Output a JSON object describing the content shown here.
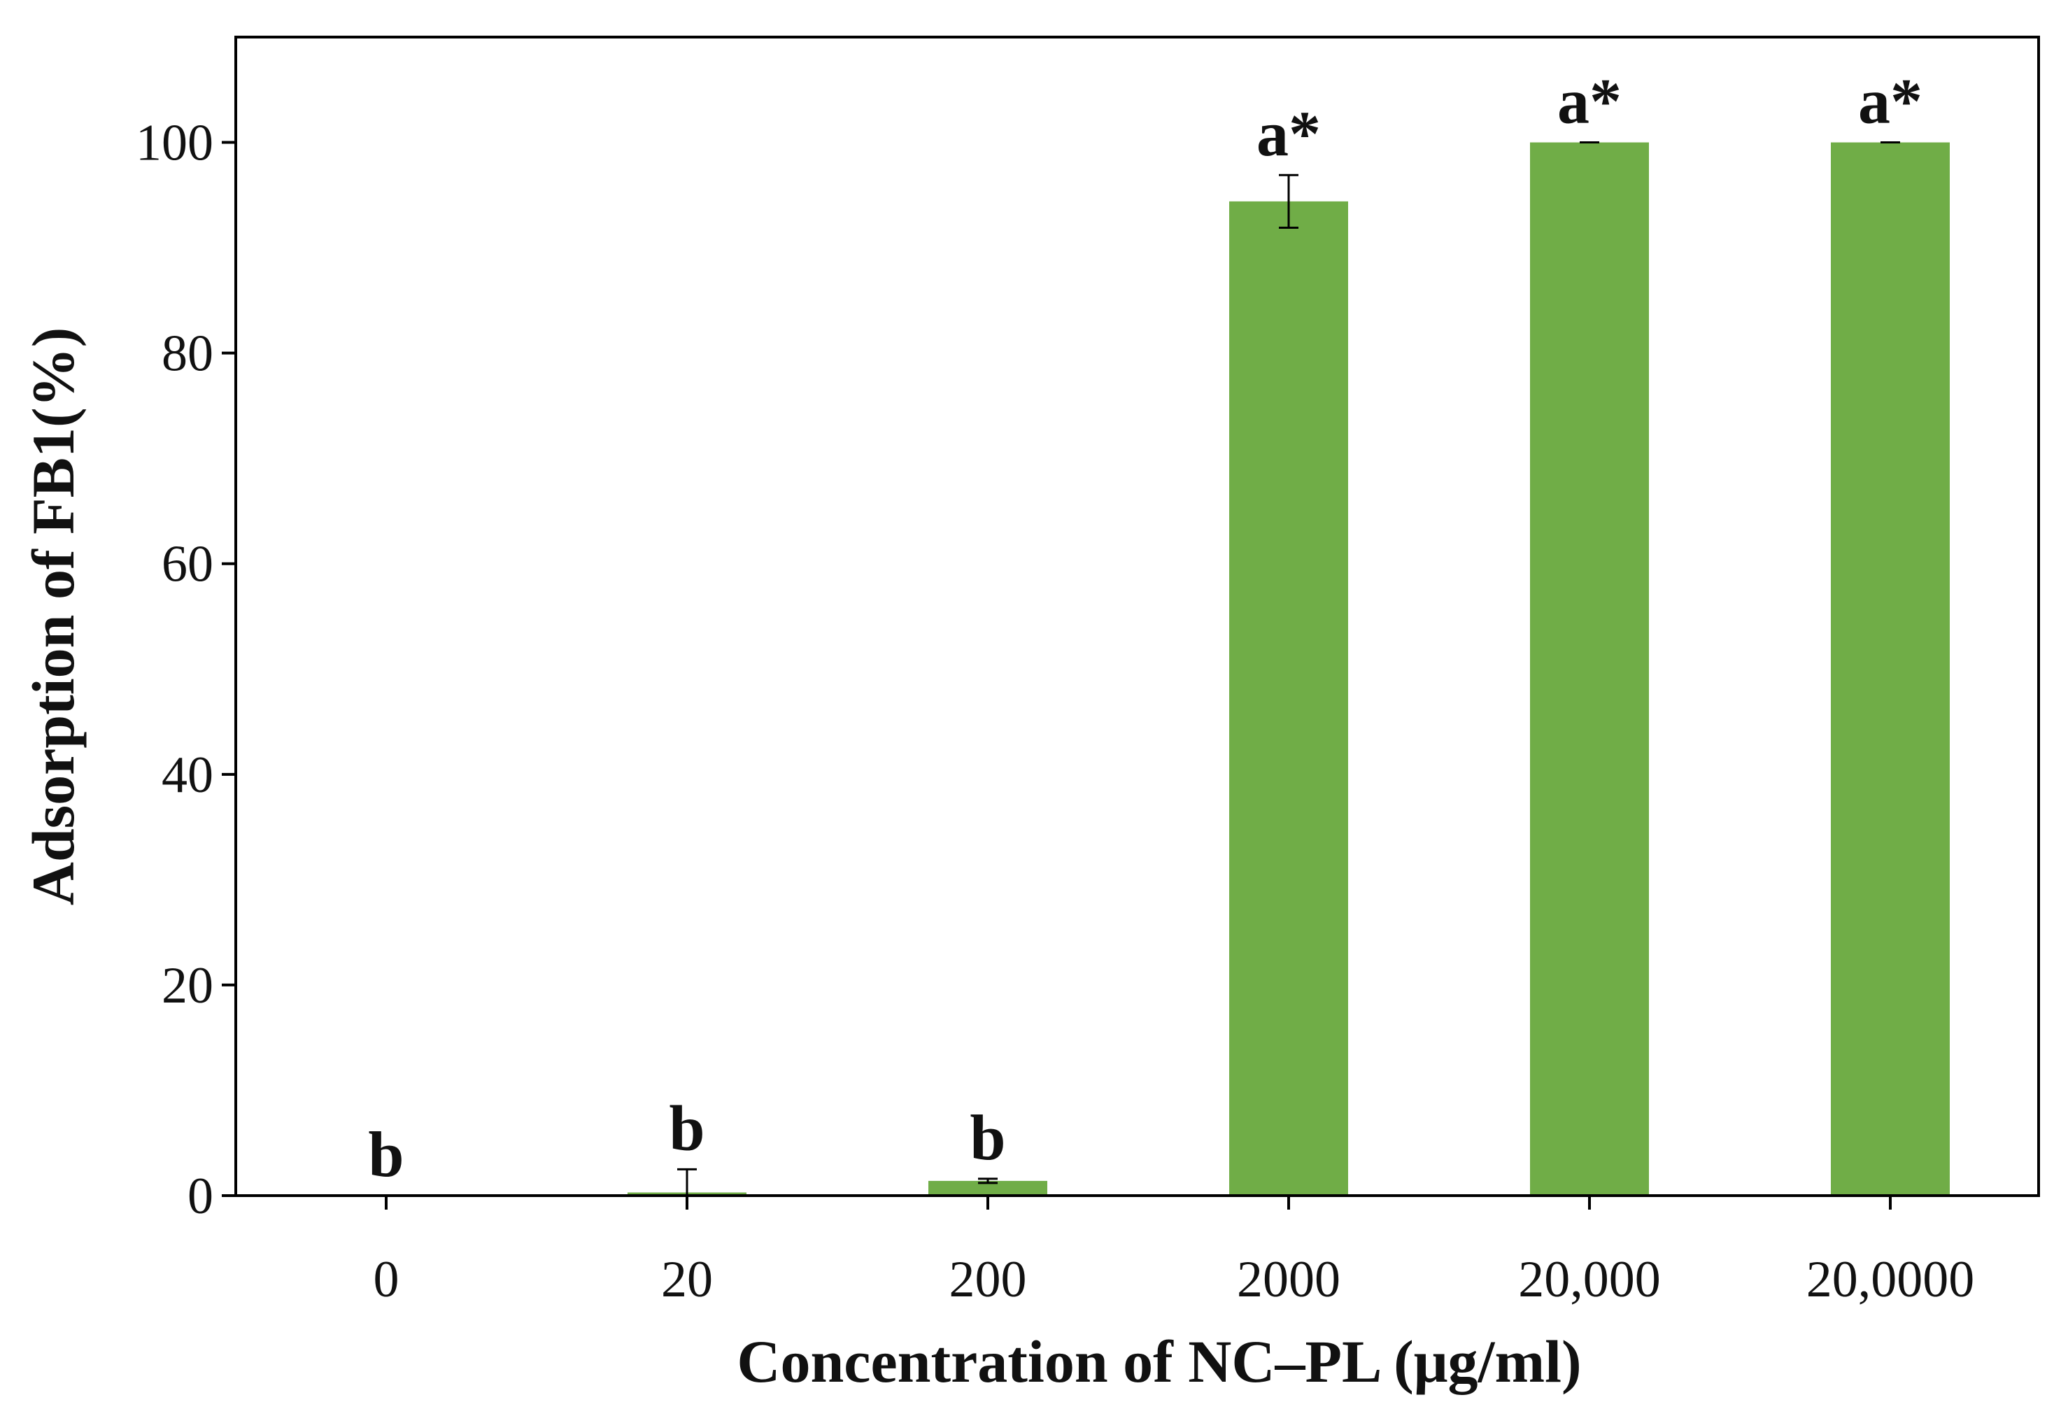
{
  "chart_data": {
    "type": "bar",
    "title": "",
    "xlabel": "Concentration of NC–PL (μg/ml)",
    "ylabel": "Adsorption of FB1(%)",
    "ylim": [
      0,
      110
    ],
    "yticks": [
      0,
      20,
      40,
      60,
      80,
      100
    ],
    "ytick_labels": [
      "0",
      "20",
      "40",
      "60",
      "80",
      "100"
    ],
    "grid": false,
    "legend": "none",
    "bar_color": "#70AD47",
    "categories": [
      "0",
      "20",
      "200",
      "2000",
      "20,000",
      "20,0000"
    ],
    "values": [
      0,
      0.3,
      1.4,
      94.4,
      100,
      100
    ],
    "errors": [
      0,
      2.2,
      0.2,
      2.5,
      0,
      0
    ],
    "significance_labels": [
      "b",
      "b",
      "b",
      "a*",
      "a*",
      "a*"
    ]
  }
}
